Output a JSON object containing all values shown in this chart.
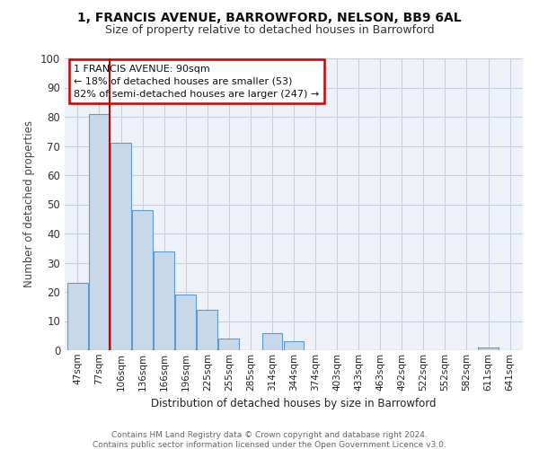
{
  "title1": "1, FRANCIS AVENUE, BARROWFORD, NELSON, BB9 6AL",
  "title2": "Size of property relative to detached houses in Barrowford",
  "xlabel": "Distribution of detached houses by size in Barrowford",
  "ylabel": "Number of detached properties",
  "bins": [
    "47sqm",
    "77sqm",
    "106sqm",
    "136sqm",
    "166sqm",
    "196sqm",
    "225sqm",
    "255sqm",
    "285sqm",
    "314sqm",
    "344sqm",
    "374sqm",
    "403sqm",
    "433sqm",
    "463sqm",
    "492sqm",
    "522sqm",
    "552sqm",
    "582sqm",
    "611sqm",
    "641sqm"
  ],
  "values": [
    23,
    81,
    71,
    48,
    34,
    19,
    14,
    4,
    0,
    6,
    3,
    0,
    0,
    0,
    0,
    0,
    0,
    0,
    0,
    1,
    0
  ],
  "bar_color": "#c8d8e8",
  "bar_edge_color": "#5b9bd5",
  "red_line_color": "#cc0000",
  "annotation_text": "1 FRANCIS AVENUE: 90sqm\n← 18% of detached houses are smaller (53)\n82% of semi-detached houses are larger (247) →",
  "annotation_box_color": "#ffffff",
  "annotation_box_edge": "#cc0000",
  "ylim": [
    0,
    100
  ],
  "footer1": "Contains HM Land Registry data © Crown copyright and database right 2024.",
  "footer2": "Contains public sector information licensed under the Open Government Licence v3.0.",
  "bg_color": "#eef2f8",
  "grid_color": "#c5cfe0"
}
